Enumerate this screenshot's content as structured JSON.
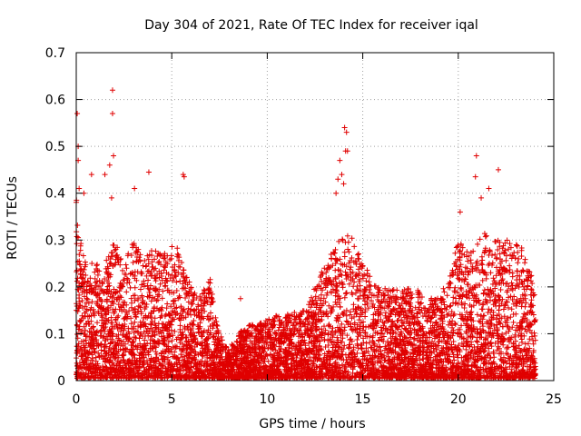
{
  "chart_data": {
    "type": "scatter",
    "title": "Day 304 of 2021, Rate Of TEC Index for receiver iqal",
    "xlabel": "GPS time / hours",
    "ylabel": "ROTI / TECUs",
    "xlim": [
      0,
      25
    ],
    "ylim": [
      0,
      0.7
    ],
    "x_ticks": [
      0,
      5,
      10,
      15,
      20,
      25
    ],
    "y_ticks": [
      0,
      0.1,
      0.2,
      0.3,
      0.4,
      0.5,
      0.6,
      0.7
    ],
    "x_tick_labels": [
      "0",
      "5",
      "10",
      "15",
      "20",
      "25"
    ],
    "y_tick_labels": [
      "0",
      "0.1",
      "0.2",
      "0.3",
      "0.4",
      "0.5",
      "0.6",
      "0.7"
    ],
    "grid": true,
    "marker": "+",
    "color": "#e00000",
    "series": [
      {
        "name": "ROTI",
        "envelope_x": [
          0,
          0.2,
          0.5,
          1,
          1.5,
          2,
          2.5,
          3,
          3.5,
          4,
          4.5,
          5,
          5.5,
          6,
          6.5,
          7,
          7.5,
          8,
          8.5,
          9,
          9.5,
          10,
          10.5,
          11,
          11.5,
          12,
          12.5,
          13,
          13.5,
          14,
          14.5,
          15,
          15.5,
          16,
          16.5,
          17,
          17.5,
          18,
          18.5,
          19,
          19.5,
          20,
          20.5,
          21,
          21.5,
          22,
          22.5,
          23,
          23.5,
          24
        ],
        "envelope_top": [
          0.4,
          0.3,
          0.26,
          0.25,
          0.25,
          0.3,
          0.25,
          0.3,
          0.27,
          0.28,
          0.27,
          0.3,
          0.27,
          0.2,
          0.18,
          0.22,
          0.1,
          0.07,
          0.1,
          0.12,
          0.12,
          0.13,
          0.14,
          0.14,
          0.15,
          0.15,
          0.2,
          0.25,
          0.28,
          0.33,
          0.3,
          0.25,
          0.22,
          0.2,
          0.2,
          0.19,
          0.2,
          0.19,
          0.18,
          0.18,
          0.22,
          0.3,
          0.28,
          0.3,
          0.32,
          0.3,
          0.3,
          0.3,
          0.28,
          0.2
        ],
        "outliers": [
          {
            "x": 0.05,
            "y": 0.57
          },
          {
            "x": 0.1,
            "y": 0.5
          },
          {
            "x": 0.1,
            "y": 0.47
          },
          {
            "x": 0.15,
            "y": 0.41
          },
          {
            "x": 0.4,
            "y": 0.4
          },
          {
            "x": 0.8,
            "y": 0.44
          },
          {
            "x": 1.5,
            "y": 0.44
          },
          {
            "x": 1.75,
            "y": 0.46
          },
          {
            "x": 1.9,
            "y": 0.62
          },
          {
            "x": 1.9,
            "y": 0.57
          },
          {
            "x": 1.95,
            "y": 0.48
          },
          {
            "x": 1.85,
            "y": 0.39
          },
          {
            "x": 3.05,
            "y": 0.41
          },
          {
            "x": 3.8,
            "y": 0.445
          },
          {
            "x": 5.6,
            "y": 0.44
          },
          {
            "x": 5.65,
            "y": 0.435
          },
          {
            "x": 13.6,
            "y": 0.4
          },
          {
            "x": 13.7,
            "y": 0.43
          },
          {
            "x": 13.8,
            "y": 0.47
          },
          {
            "x": 14.05,
            "y": 0.54
          },
          {
            "x": 14.15,
            "y": 0.53
          },
          {
            "x": 14.1,
            "y": 0.49
          },
          {
            "x": 14.2,
            "y": 0.49
          },
          {
            "x": 13.9,
            "y": 0.44
          },
          {
            "x": 14.0,
            "y": 0.42
          },
          {
            "x": 20.95,
            "y": 0.48
          },
          {
            "x": 20.9,
            "y": 0.435
          },
          {
            "x": 21.6,
            "y": 0.41
          },
          {
            "x": 22.1,
            "y": 0.45
          },
          {
            "x": 21.2,
            "y": 0.39
          },
          {
            "x": 20.1,
            "y": 0.36
          },
          {
            "x": 8.6,
            "y": 0.175
          }
        ]
      }
    ]
  }
}
